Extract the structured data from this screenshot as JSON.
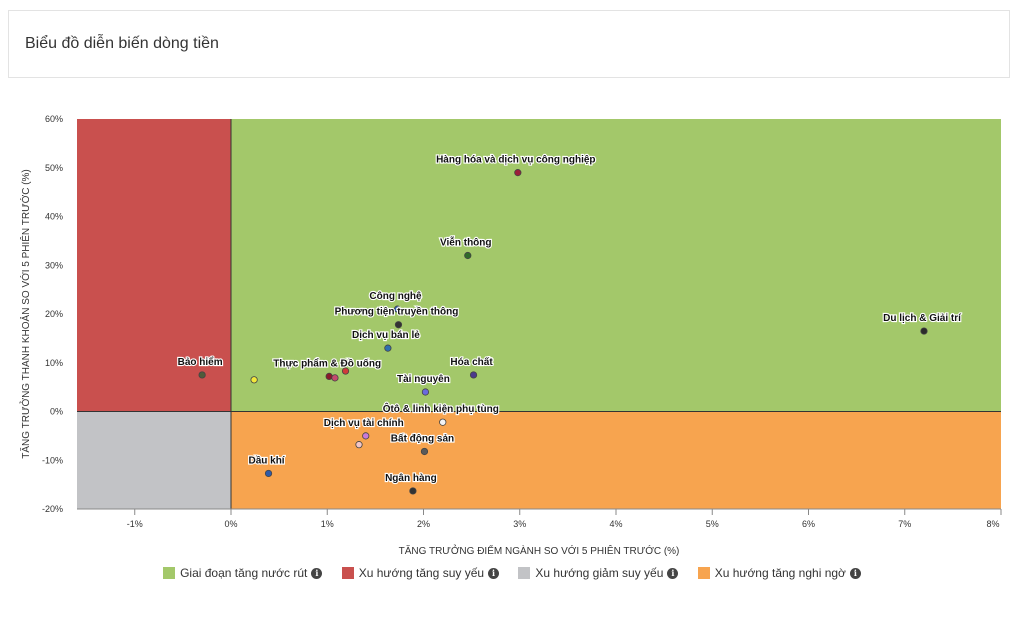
{
  "header": {
    "title": "Biểu đồ diễn biến dòng tiền"
  },
  "chart_data": {
    "type": "scatter",
    "xlabel": "TĂNG TRƯỞNG ĐIỂM NGÀNH SO VỚI 5 PHIÊN TRƯỚC (%)",
    "ylabel": "TĂNG TRƯỞNG THANH KHOẢN SO VỚI 5 PHIÊN TRƯỚC (%)",
    "xlim": [
      -1.6,
      8
    ],
    "ylim": [
      -20,
      60
    ],
    "x_ticks": [
      -1,
      0,
      1,
      2,
      3,
      4,
      5,
      6,
      7,
      8
    ],
    "y_ticks": [
      -20,
      -10,
      0,
      10,
      20,
      30,
      40,
      50,
      60
    ],
    "x_tick_labels": [
      "-1%",
      "0%",
      "1%",
      "2%",
      "3%",
      "4%",
      "5%",
      "6%",
      "7%",
      "8%"
    ],
    "y_tick_labels": [
      "-20%",
      "-10%",
      "0%",
      "10%",
      "20%",
      "30%",
      "40%",
      "50%",
      "60%"
    ],
    "quadrants": [
      {
        "name": "Giai đoạn tăng nước rút",
        "x": [
          0,
          8
        ],
        "y": [
          0,
          60
        ],
        "color": "#a3c86a"
      },
      {
        "name": "Xu hướng tăng suy yếu",
        "x": [
          -1.6,
          0
        ],
        "y": [
          0,
          60
        ],
        "color": "#c9504e"
      },
      {
        "name": "Xu hướng giảm suy yếu",
        "x": [
          -1.6,
          0
        ],
        "y": [
          -20,
          0
        ],
        "color": "#c2c3c6"
      },
      {
        "name": "Xu hướng tăng nghi ngờ",
        "x": [
          0,
          8
        ],
        "y": [
          -20,
          0
        ],
        "color": "#f7a44f"
      }
    ],
    "points": [
      {
        "label": "Hàng hóa và dịch vụ công nghiệp",
        "x": 2.98,
        "y": 49.0,
        "color": "#9b1f3a"
      },
      {
        "label": "Viễn thông",
        "x": 2.46,
        "y": 32.0,
        "color": "#2f6a2a"
      },
      {
        "label": "Du lịch & Giải trí",
        "x": 7.2,
        "y": 16.5,
        "color": "#2b2b2b"
      },
      {
        "label": "Công nghệ",
        "x": 1.73,
        "y": 21.0,
        "color": "#2f5aa8"
      },
      {
        "label": "Phương tiện truyền thông",
        "x": 1.74,
        "y": 17.8,
        "color": "#333333"
      },
      {
        "label": "Dịch vụ bán lẻ",
        "x": 1.63,
        "y": 13.0,
        "color": "#2f6fb0"
      },
      {
        "label": "Hóa chất",
        "x": 2.52,
        "y": 7.5,
        "color": "#4b3a8c"
      },
      {
        "label": "Bảo hiểm",
        "x": -0.3,
        "y": 7.5,
        "color": "#4e5b3a"
      },
      {
        "label": "",
        "x": 0.24,
        "y": 6.5,
        "color": "#f2e83a"
      },
      {
        "label": "Thực phẩm & Đồ uống",
        "x": 1.02,
        "y": 7.2,
        "color": "#8a1a2a"
      },
      {
        "label": "",
        "x": 1.08,
        "y": 6.9,
        "color": "#c44a6e"
      },
      {
        "label": "",
        "x": 1.19,
        "y": 8.3,
        "color": "#d03a3a"
      },
      {
        "label": "Tài nguyên",
        "x": 2.02,
        "y": 4.0,
        "color": "#6a6adf"
      },
      {
        "label": "Ôtô & linh kiện phụ tùng",
        "x": 2.2,
        "y": -2.2,
        "color": "#f3f3f3"
      },
      {
        "label": "Dịch vụ tài chính",
        "x": 1.4,
        "y": -5.0,
        "color": "#c87ad8"
      },
      {
        "label": "",
        "x": 1.33,
        "y": -6.8,
        "color": "#f3c6c6"
      },
      {
        "label": "Bất động sản",
        "x": 2.01,
        "y": -8.2,
        "color": "#5a5a5a"
      },
      {
        "label": "Dầu khí",
        "x": 0.39,
        "y": -12.7,
        "color": "#2f5aa8"
      },
      {
        "label": "Ngân hàng",
        "x": 1.89,
        "y": -16.3,
        "color": "#333333"
      }
    ]
  },
  "legend": {
    "items": [
      {
        "label": "Giai đoạn tăng nước rút",
        "color": "#a3c86a"
      },
      {
        "label": "Xu hướng tăng suy yếu",
        "color": "#c9504e"
      },
      {
        "label": "Xu hướng giảm suy yếu",
        "color": "#c2c3c6"
      },
      {
        "label": "Xu hướng tăng nghi ngờ",
        "color": "#f7a44f"
      }
    ],
    "info_glyph": "i"
  }
}
